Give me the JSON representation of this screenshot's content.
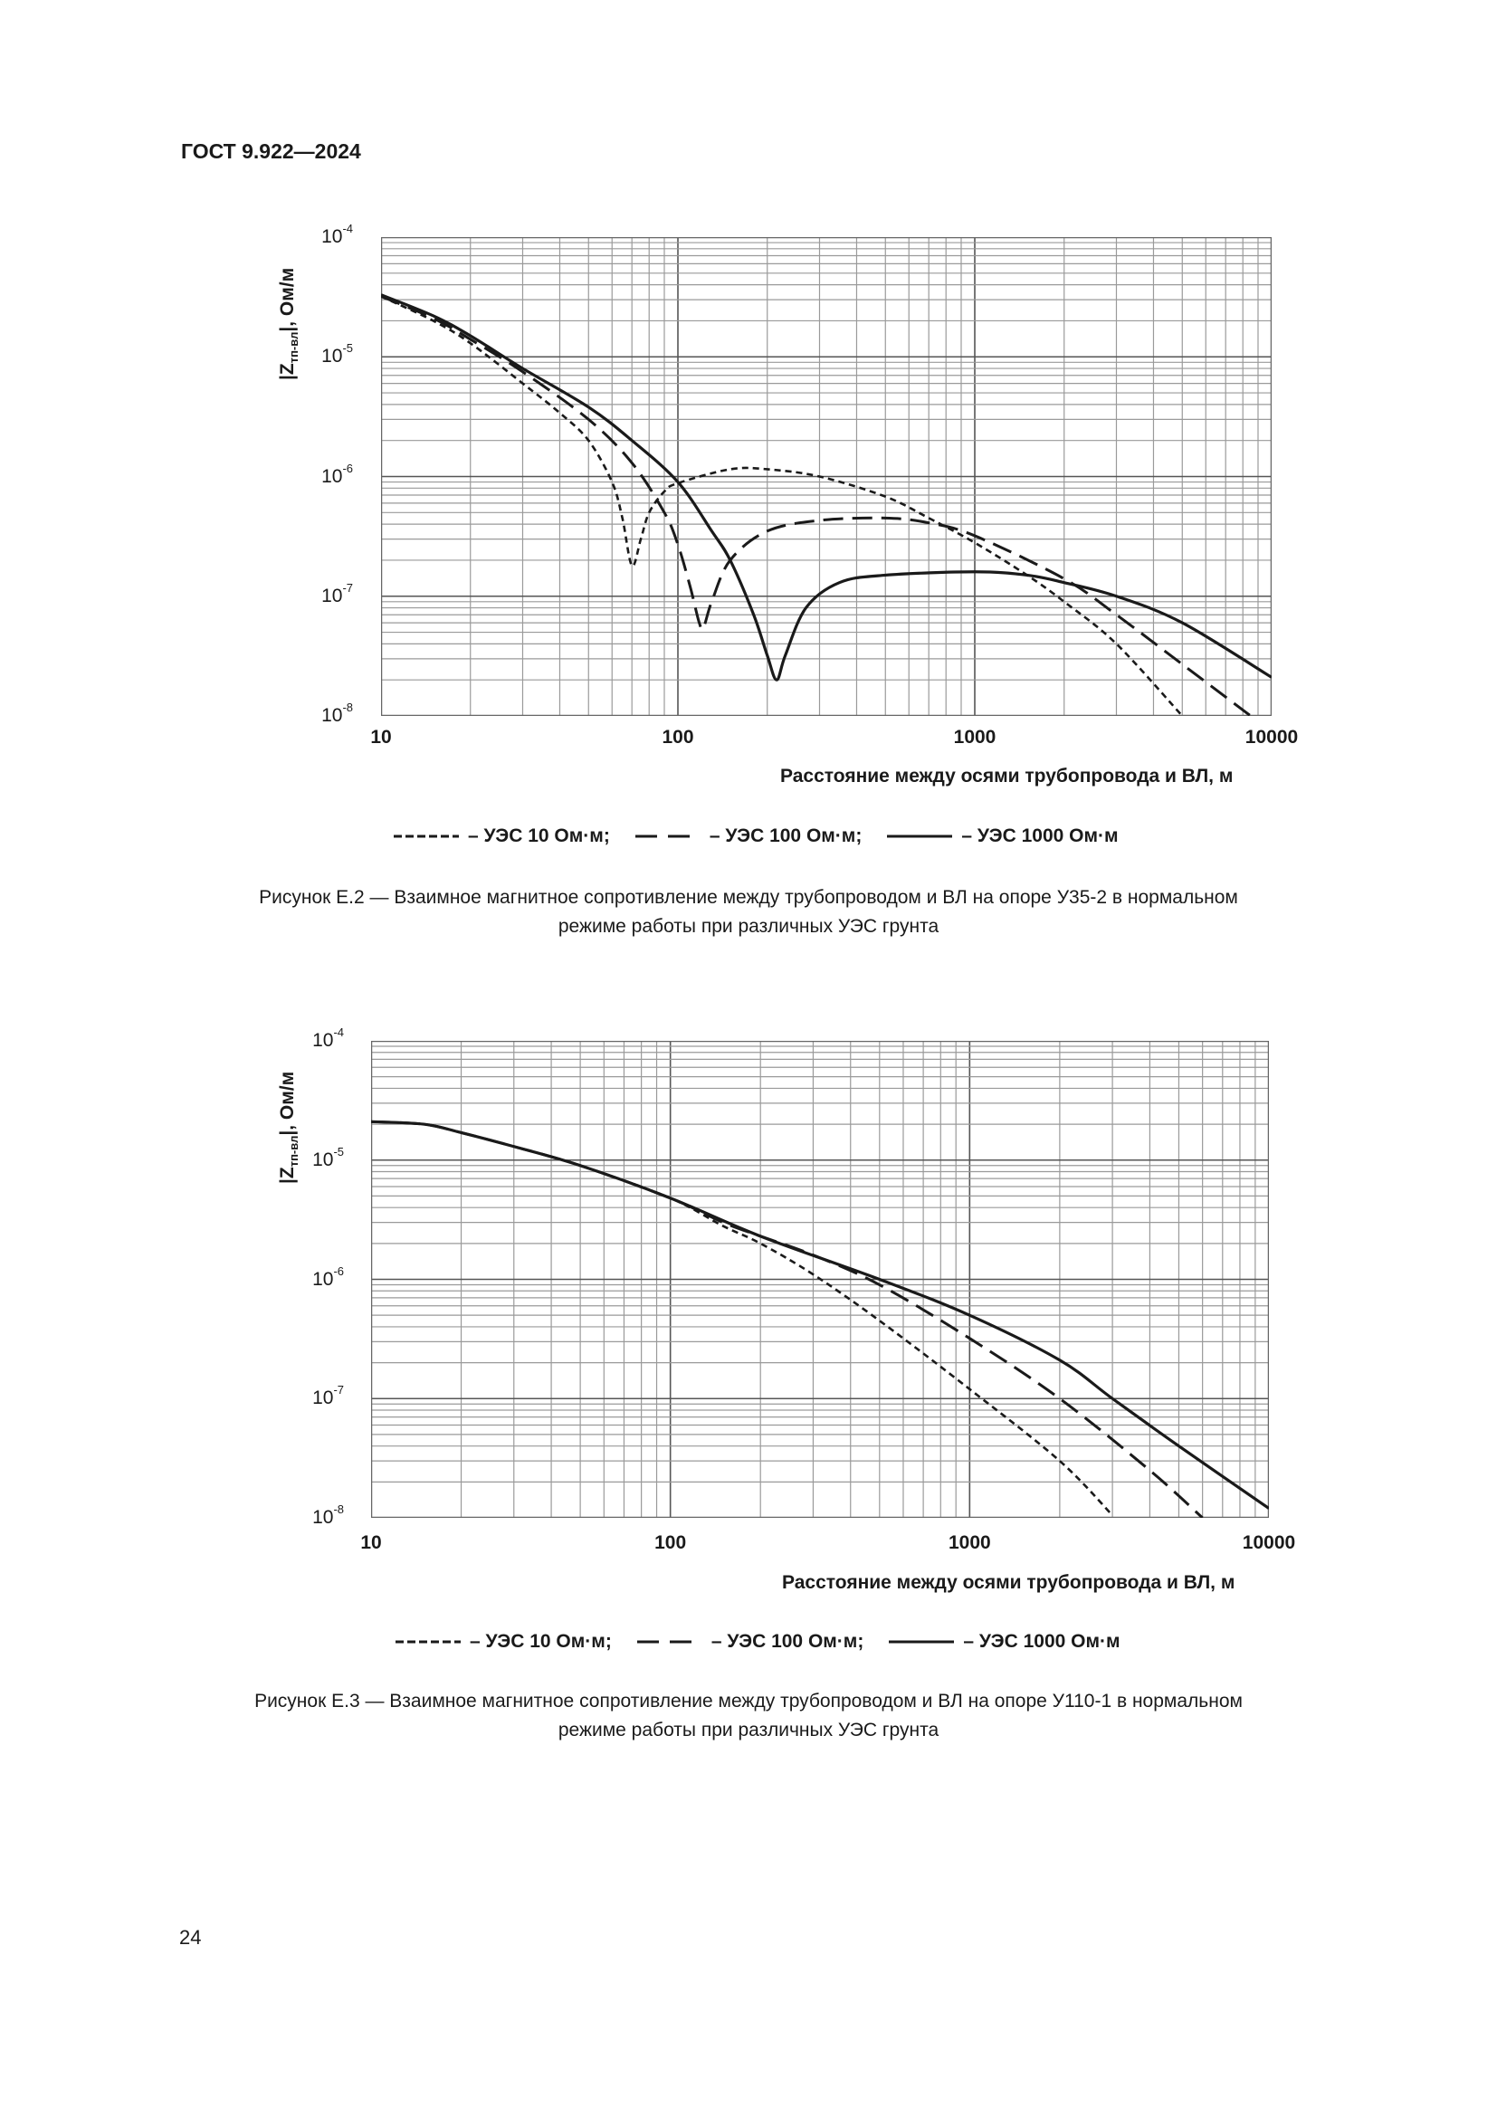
{
  "header": {
    "doc_id": "ГОСТ 9.922—2024"
  },
  "page_number": "24",
  "chart_data": [
    {
      "type": "line",
      "xscale": "log",
      "yscale": "log",
      "xlim": [
        10,
        10000
      ],
      "ylim": [
        1e-08,
        0.0001
      ],
      "grid": true,
      "x_ticks": [
        "10",
        "100",
        "1000",
        "10000"
      ],
      "y_ticks": [
        {
          "base": "10",
          "exp": "-4"
        },
        {
          "base": "10",
          "exp": "-5"
        },
        {
          "base": "10",
          "exp": "-6"
        },
        {
          "base": "10",
          "exp": "-7"
        },
        {
          "base": "10",
          "exp": "-8"
        }
      ],
      "ylabel": {
        "pre": "|Z",
        "sub": "тп-вл",
        "post": "|, Ом/м"
      },
      "xlabel": "Расстояние между осями трубопровода и ВЛ, м",
      "legend_placement": "bottom",
      "series": [
        {
          "name": "– УЭС 10 Ом·м;",
          "style": "short-dash",
          "x": [
            10,
            15,
            20,
            30,
            40,
            50,
            60,
            65,
            70,
            75,
            80,
            90,
            100,
            150,
            200,
            300,
            500,
            700,
            1000,
            1500,
            2000,
            3000,
            5000
          ],
          "y": [
            3.2e-05,
            2e-05,
            1.3e-05,
            6e-06,
            3.4e-06,
            2e-06,
            9e-07,
            4.5e-07,
            1.8e-07,
            3e-07,
            5e-07,
            7.5e-07,
            8.8e-07,
            1.15e-06,
            1.15e-06,
            1e-06,
            6.8e-07,
            4.5e-07,
            2.8e-07,
            1.5e-07,
            9e-08,
            4e-08,
            1e-08
          ]
        },
        {
          "name": "– УЭС 100 Ом·м;",
          "style": "long-dash",
          "x": [
            10,
            15,
            20,
            30,
            50,
            70,
            90,
            100,
            110,
            118,
            122,
            130,
            150,
            200,
            300,
            500,
            700,
            1000,
            2000,
            3000,
            5000,
            8500
          ],
          "y": [
            3.2e-05,
            2.1e-05,
            1.4e-05,
            7.5e-06,
            3e-06,
            1.3e-06,
            5e-07,
            2.7e-07,
            1.2e-07,
            6e-08,
            5.5e-08,
            9e-08,
            2e-07,
            3.5e-07,
            4.3e-07,
            4.5e-07,
            4.1e-07,
            3.2e-07,
            1.4e-07,
            7e-08,
            2.7e-08,
            1e-08
          ]
        },
        {
          "name": "– УЭС 1000 Ом·м",
          "style": "solid",
          "x": [
            10,
            15,
            20,
            30,
            50,
            70,
            100,
            130,
            150,
            180,
            200,
            215,
            230,
            270,
            350,
            500,
            1000,
            1500,
            2000,
            3000,
            5000,
            10000
          ],
          "y": [
            3.3e-05,
            2.2e-05,
            1.5e-05,
            8e-06,
            3.8e-06,
            2e-06,
            9e-07,
            3.5e-07,
            2e-07,
            7e-08,
            3.2e-08,
            2e-08,
            3.2e-08,
            8e-08,
            1.3e-07,
            1.5e-07,
            1.6e-07,
            1.5e-07,
            1.3e-07,
            1e-07,
            6e-08,
            2.1e-08
          ]
        }
      ],
      "caption": [
        "Рисунок Е.2 — Взаимное магнитное сопротивление между трубопроводом и ВЛ на опоре У35-2 в нормальном",
        "режиме работы при различных УЭС грунта"
      ]
    },
    {
      "type": "line",
      "xscale": "log",
      "yscale": "log",
      "xlim": [
        10,
        10000
      ],
      "ylim": [
        1e-08,
        0.0001
      ],
      "grid": true,
      "x_ticks": [
        "10",
        "100",
        "1000",
        "10000"
      ],
      "y_ticks": [
        {
          "base": "10",
          "exp": "-4"
        },
        {
          "base": "10",
          "exp": "-5"
        },
        {
          "base": "10",
          "exp": "-6"
        },
        {
          "base": "10",
          "exp": "-7"
        },
        {
          "base": "10",
          "exp": "-8"
        }
      ],
      "ylabel": {
        "pre": "|Z",
        "sub": "тп-вл",
        "post": "|, Ом/м"
      },
      "xlabel": "Расстояние между осями трубопровода и ВЛ, м",
      "legend_placement": "bottom",
      "series": [
        {
          "name": "– УЭС 10 Ом·м;",
          "style": "short-dash",
          "x": [
            10,
            15,
            20,
            30,
            50,
            100,
            150,
            200,
            300,
            500,
            1000,
            2000,
            3000
          ],
          "y": [
            2.1e-05,
            2e-05,
            1.7e-05,
            1.3e-05,
            9e-06,
            4.8e-06,
            2.8e-06,
            2e-06,
            1.1e-06,
            4.5e-07,
            1.2e-07,
            3e-08,
            1.05e-08
          ]
        },
        {
          "name": "– УЭС 100 Ом·м;",
          "style": "long-dash",
          "x": [
            10,
            15,
            20,
            30,
            50,
            100,
            150,
            200,
            300,
            500,
            1000,
            2000,
            4000,
            6000
          ],
          "y": [
            2.1e-05,
            2e-05,
            1.7e-05,
            1.3e-05,
            9e-06,
            4.8e-06,
            3e-06,
            2.3e-06,
            1.6e-06,
            9e-07,
            3.2e-07,
            1e-07,
            2.5e-08,
            1e-08
          ]
        },
        {
          "name": "– УЭС 1000 Ом·м",
          "style": "solid",
          "x": [
            10,
            15,
            20,
            30,
            50,
            100,
            200,
            500,
            1000,
            2000,
            3000,
            5000,
            10000
          ],
          "y": [
            2.1e-05,
            2e-05,
            1.7e-05,
            1.3e-05,
            9e-06,
            4.8e-06,
            2.3e-06,
            1e-06,
            5e-07,
            2.1e-07,
            1e-07,
            4e-08,
            1.2e-08
          ]
        }
      ],
      "caption": [
        "Рисунок Е.3 — Взаимное магнитное сопротивление между трубопроводом и ВЛ на опоре У110-1 в нормальном",
        "режиме работы при различных УЭС грунта"
      ]
    }
  ]
}
